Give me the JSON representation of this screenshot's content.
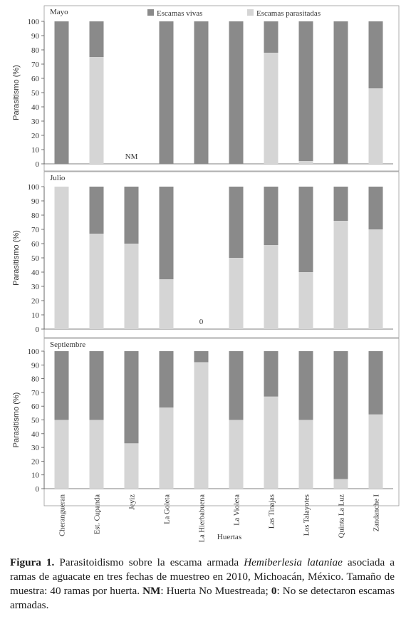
{
  "chart_data": [
    {
      "type": "bar",
      "stacked": true,
      "title": "Mayo",
      "ylabel": "Parasitismo (%)",
      "ylim": [
        0,
        100
      ],
      "yticks": [
        0,
        10,
        20,
        30,
        40,
        50,
        60,
        70,
        80,
        90,
        100
      ],
      "legend": [
        "Escamas vivas",
        "Escamas parasitadas"
      ],
      "legend_position": "top",
      "categories": [
        "Cherangueran",
        "Est. Cupanda",
        "Jeyiz",
        "La Goleta",
        "La Hierbabuena",
        "La Violeta",
        "Las Tinajas",
        "Los Talayotes",
        "Quinta La Luz",
        "Zandanche I"
      ],
      "series": [
        {
          "name": "Escamas parasitadas",
          "values": [
            0,
            75,
            null,
            0,
            0,
            0,
            78,
            2,
            0,
            53
          ]
        },
        {
          "name": "Escamas vivas",
          "values": [
            100,
            25,
            null,
            100,
            100,
            100,
            22,
            98,
            100,
            47
          ]
        }
      ],
      "annotations": [
        {
          "category": "Jeyiz",
          "text": "NM"
        }
      ]
    },
    {
      "type": "bar",
      "stacked": true,
      "title": "Julio",
      "ylabel": "Parasitismo (%)",
      "ylim": [
        0,
        100
      ],
      "yticks": [
        0,
        10,
        20,
        30,
        40,
        50,
        60,
        70,
        80,
        90,
        100
      ],
      "categories": [
        "Cherangueran",
        "Est. Cupanda",
        "Jeyiz",
        "La Goleta",
        "La Hierbabuena",
        "La Violeta",
        "Las Tinajas",
        "Los Talayotes",
        "Quinta La Luz",
        "Zandanche I"
      ],
      "series": [
        {
          "name": "Escamas parasitadas",
          "values": [
            100,
            67,
            60,
            35,
            null,
            50,
            59,
            40,
            76,
            70
          ]
        },
        {
          "name": "Escamas vivas",
          "values": [
            0,
            33,
            40,
            65,
            null,
            50,
            41,
            60,
            24,
            30
          ]
        }
      ],
      "annotations": [
        {
          "category": "La Hierbabuena",
          "text": "0"
        }
      ]
    },
    {
      "type": "bar",
      "stacked": true,
      "title": "Septiembre",
      "ylabel": "Parasitismo (%)",
      "xlabel": "Huertas",
      "ylim": [
        0,
        100
      ],
      "yticks": [
        0,
        10,
        20,
        30,
        40,
        50,
        60,
        70,
        80,
        90,
        100
      ],
      "categories": [
        "Cherangueran",
        "Est. Cupanda",
        "Jeyiz",
        "La Goleta",
        "La Hierbabuena",
        "La Violeta",
        "Las Tinajas",
        "Los Talayotes",
        "Quinta La Luz",
        "Zandanche I"
      ],
      "series": [
        {
          "name": "Escamas parasitadas",
          "values": [
            50,
            50,
            33,
            59,
            92,
            50,
            67,
            50,
            7,
            54
          ]
        },
        {
          "name": "Escamas vivas",
          "values": [
            50,
            50,
            67,
            41,
            8,
            50,
            33,
            50,
            93,
            46
          ]
        }
      ]
    }
  ],
  "colors": {
    "vivas": "#8a8a8a",
    "parasitadas": "#d5d5d5"
  },
  "caption": {
    "label": "Figura 1.",
    "text1": " Parasitoidismo sobre la escama armada ",
    "species": "Hemiberlesia lataniae",
    "text2": " asociada a ramas de aguacate en tres fechas de muestreo en 2010, Michoacán, México. Tamaño de muestra: 40 ramas por huerta. ",
    "nm_label": "NM",
    "nm_text": ": Huerta No Muestreada; ",
    "zero_label": "0",
    "zero_text": ": No se detectaron escamas armadas."
  }
}
